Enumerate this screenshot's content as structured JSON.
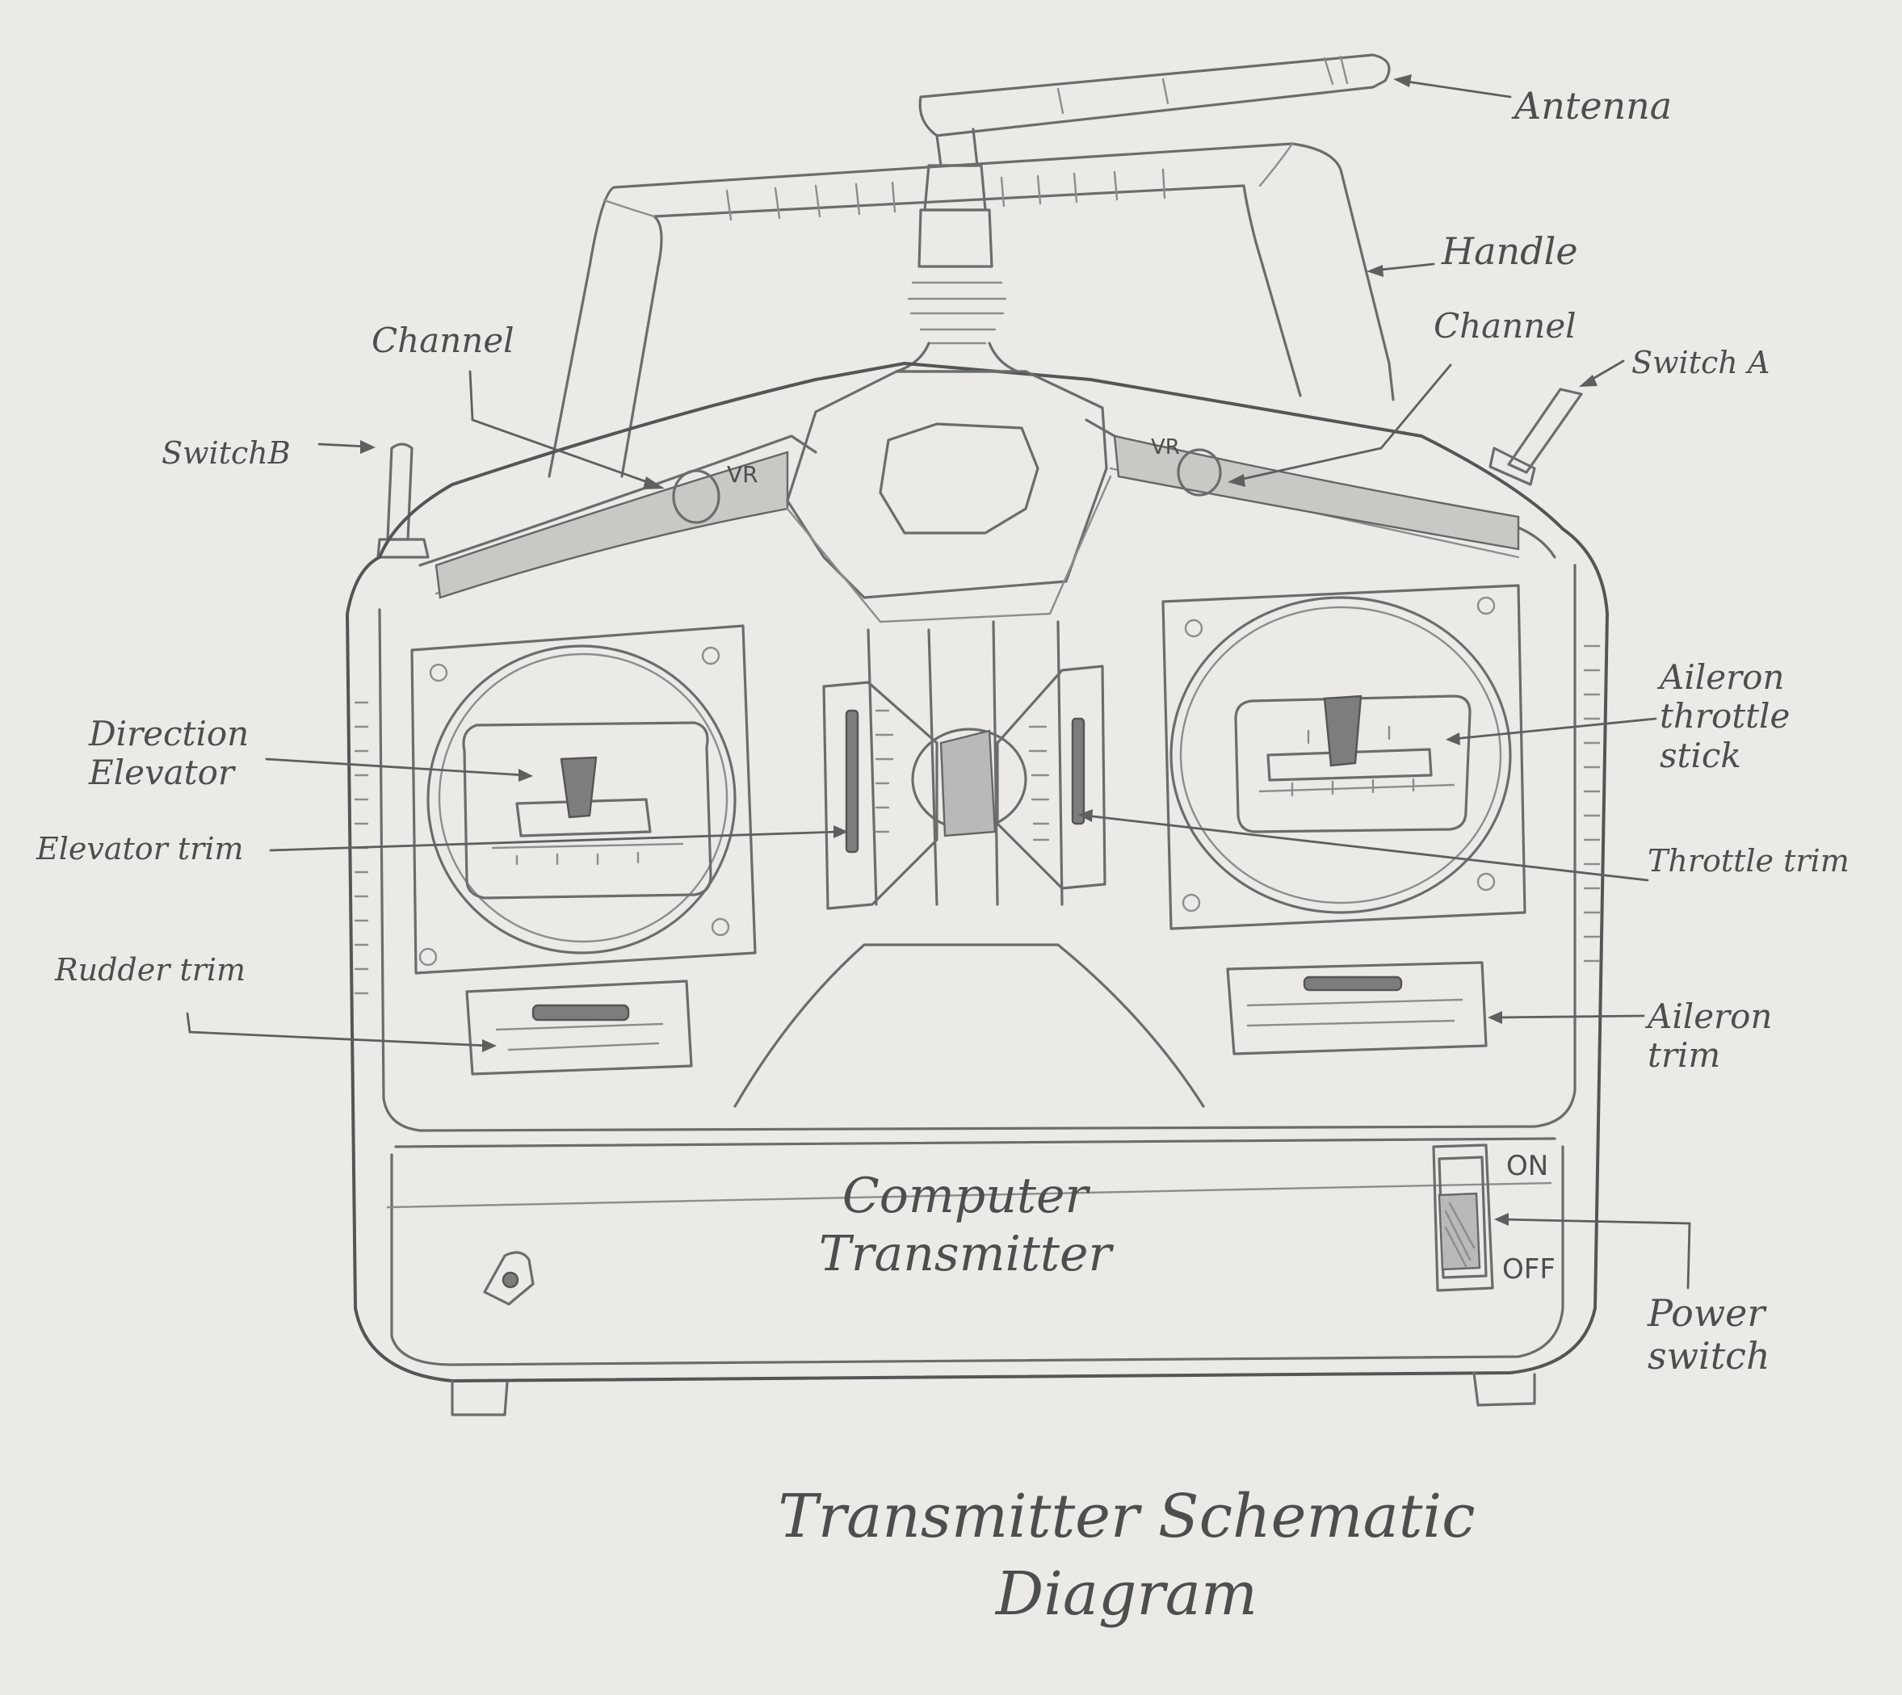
{
  "diagram": {
    "title": "Transmitter Schematic\nDiagram",
    "device_label": "Computer\nTransmitter",
    "knob_marks": {
      "left": "VR",
      "right": "VR"
    },
    "switch_marks": {
      "on": "ON",
      "off": "OFF"
    },
    "labels": {
      "antenna": "Antenna",
      "handle": "Handle",
      "channel_left": "Channel",
      "channel_right": "Channel",
      "switch_a": "Switch A",
      "switch_b": "SwitchB",
      "direction_elevator": "Direction\nElevator",
      "elevator_trim": "Elevator trim",
      "rudder_trim": "Rudder trim",
      "aileron_throttle_stick": "Aileron\nthrottle\nstick",
      "throttle_trim": "Throttle trim",
      "aileron_trim": "Aileron\ntrim",
      "power_switch": "Power\nswitch"
    }
  }
}
